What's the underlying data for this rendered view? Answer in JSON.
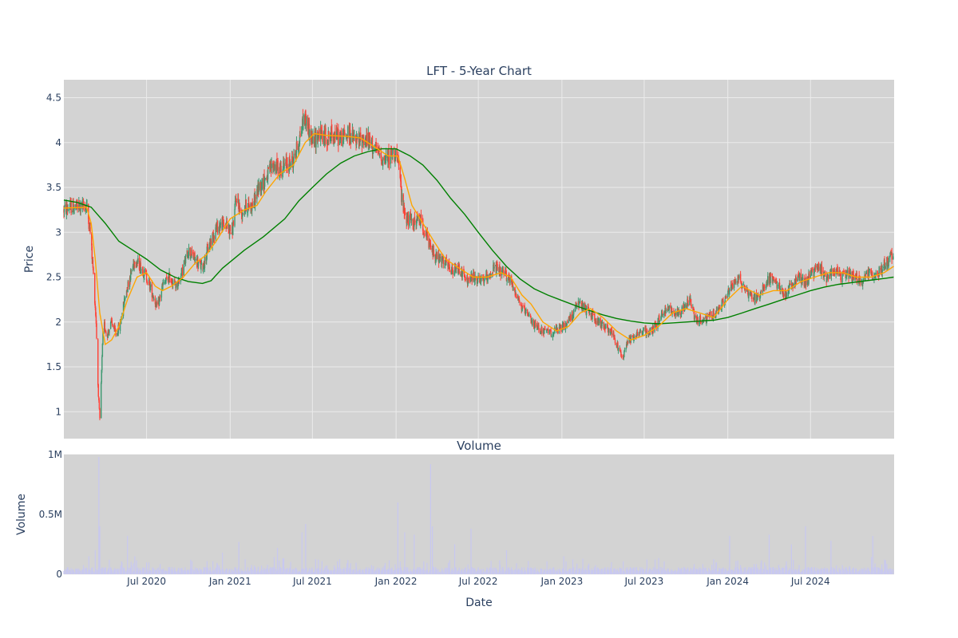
{
  "chart_data": [
    {
      "type": "candlestick",
      "title": "LFT - 5-Year Chart",
      "xlabel": "",
      "ylabel": "Price",
      "ylim": [
        0.7,
        4.7
      ],
      "yticks": [
        1,
        1.5,
        2,
        2.5,
        3,
        3.5,
        4,
        4.5
      ],
      "ytick_labels": [
        "1",
        "1.5",
        "2",
        "2.5",
        "3",
        "3.5",
        "4",
        "4.5"
      ],
      "xlim": [
        "2020-01-01",
        "2025-01-01"
      ],
      "colors": {
        "up": "#3d9970",
        "down": "#ff4136",
        "ma_short": "#ffa500",
        "ma_long": "#008000",
        "plot_bg": "#d3d3d3",
        "grid": "#ebebeb"
      },
      "close_path": [
        [
          "2020-01-01",
          3.25
        ],
        [
          "2020-01-15",
          3.28
        ],
        [
          "2020-02-01",
          3.28
        ],
        [
          "2020-02-20",
          3.3
        ],
        [
          "2020-02-28",
          3.0
        ],
        [
          "2020-03-05",
          2.6
        ],
        [
          "2020-03-12",
          2.0
        ],
        [
          "2020-03-16",
          1.3
        ],
        [
          "2020-03-20",
          0.9
        ],
        [
          "2020-03-24",
          1.45
        ],
        [
          "2020-03-28",
          2.0
        ],
        [
          "2020-04-05",
          1.85
        ],
        [
          "2020-04-15",
          2.0
        ],
        [
          "2020-04-25",
          1.85
        ],
        [
          "2020-05-05",
          2.0
        ],
        [
          "2020-05-15",
          2.3
        ],
        [
          "2020-05-25",
          2.5
        ],
        [
          "2020-06-05",
          2.7
        ],
        [
          "2020-06-20",
          2.6
        ],
        [
          "2020-07-01",
          2.5
        ],
        [
          "2020-07-15",
          2.3
        ],
        [
          "2020-07-25",
          2.15
        ],
        [
          "2020-08-05",
          2.4
        ],
        [
          "2020-08-20",
          2.5
        ],
        [
          "2020-09-05",
          2.4
        ],
        [
          "2020-09-20",
          2.6
        ],
        [
          "2020-10-01",
          2.8
        ],
        [
          "2020-10-15",
          2.7
        ],
        [
          "2020-11-01",
          2.6
        ],
        [
          "2020-11-15",
          2.85
        ],
        [
          "2020-12-01",
          3.05
        ],
        [
          "2020-12-20",
          3.1
        ],
        [
          "2021-01-05",
          3.0
        ],
        [
          "2021-01-15",
          3.4
        ],
        [
          "2021-01-25",
          3.2
        ],
        [
          "2021-02-05",
          3.3
        ],
        [
          "2021-02-20",
          3.3
        ],
        [
          "2021-03-05",
          3.5
        ],
        [
          "2021-03-20",
          3.6
        ],
        [
          "2021-04-05",
          3.75
        ],
        [
          "2021-04-20",
          3.7
        ],
        [
          "2021-05-05",
          3.75
        ],
        [
          "2021-05-20",
          3.8
        ],
        [
          "2021-06-05",
          4.1
        ],
        [
          "2021-06-12",
          4.3
        ],
        [
          "2021-06-20",
          4.2
        ],
        [
          "2021-07-01",
          4.0
        ],
        [
          "2021-07-15",
          4.1
        ],
        [
          "2021-08-01",
          4.05
        ],
        [
          "2021-08-15",
          4.1
        ],
        [
          "2021-09-01",
          4.05
        ],
        [
          "2021-09-20",
          4.1
        ],
        [
          "2021-10-05",
          4.0
        ],
        [
          "2021-10-20",
          4.05
        ],
        [
          "2021-11-05",
          4.0
        ],
        [
          "2021-11-20",
          3.9
        ],
        [
          "2021-12-05",
          3.8
        ],
        [
          "2021-12-20",
          3.85
        ],
        [
          "2022-01-01",
          3.9
        ],
        [
          "2022-01-10",
          3.6
        ],
        [
          "2022-01-15",
          3.3
        ],
        [
          "2022-01-25",
          3.15
        ],
        [
          "2022-02-10",
          3.1
        ],
        [
          "2022-02-25",
          3.15
        ],
        [
          "2022-03-05",
          3.0
        ],
        [
          "2022-03-20",
          2.8
        ],
        [
          "2022-04-05",
          2.7
        ],
        [
          "2022-04-20",
          2.65
        ],
        [
          "2022-05-05",
          2.55
        ],
        [
          "2022-05-20",
          2.6
        ],
        [
          "2022-06-05",
          2.45
        ],
        [
          "2022-06-20",
          2.5
        ],
        [
          "2022-07-05",
          2.45
        ],
        [
          "2022-07-20",
          2.5
        ],
        [
          "2022-08-05",
          2.6
        ],
        [
          "2022-08-20",
          2.55
        ],
        [
          "2022-09-05",
          2.5
        ],
        [
          "2022-09-20",
          2.35
        ],
        [
          "2022-10-05",
          2.15
        ],
        [
          "2022-10-20",
          2.05
        ],
        [
          "2022-11-05",
          1.95
        ],
        [
          "2022-11-20",
          1.9
        ],
        [
          "2022-12-05",
          1.88
        ],
        [
          "2022-12-20",
          1.9
        ],
        [
          "2023-01-05",
          1.95
        ],
        [
          "2023-01-20",
          2.05
        ],
        [
          "2023-02-05",
          2.2
        ],
        [
          "2023-02-20",
          2.15
        ],
        [
          "2023-03-05",
          2.1
        ],
        [
          "2023-03-20",
          2.0
        ],
        [
          "2023-04-05",
          1.95
        ],
        [
          "2023-04-20",
          1.9
        ],
        [
          "2023-05-05",
          1.7
        ],
        [
          "2023-05-15",
          1.6
        ],
        [
          "2023-05-25",
          1.8
        ],
        [
          "2023-06-10",
          1.85
        ],
        [
          "2023-06-25",
          1.9
        ],
        [
          "2023-07-10",
          1.88
        ],
        [
          "2023-07-25",
          1.95
        ],
        [
          "2023-08-10",
          2.1
        ],
        [
          "2023-08-25",
          2.15
        ],
        [
          "2023-09-10",
          2.1
        ],
        [
          "2023-09-25",
          2.15
        ],
        [
          "2023-10-10",
          2.25
        ],
        [
          "2023-10-20",
          2.05
        ],
        [
          "2023-11-05",
          2.0
        ],
        [
          "2023-11-20",
          2.05
        ],
        [
          "2023-12-05",
          2.1
        ],
        [
          "2023-12-20",
          2.2
        ],
        [
          "2024-01-05",
          2.35
        ],
        [
          "2024-01-20",
          2.5
        ],
        [
          "2024-02-05",
          2.4
        ],
        [
          "2024-02-20",
          2.3
        ],
        [
          "2024-03-05",
          2.25
        ],
        [
          "2024-03-20",
          2.4
        ],
        [
          "2024-04-05",
          2.5
        ],
        [
          "2024-04-20",
          2.4
        ],
        [
          "2024-05-05",
          2.3
        ],
        [
          "2024-05-20",
          2.4
        ],
        [
          "2024-06-05",
          2.5
        ],
        [
          "2024-06-20",
          2.45
        ],
        [
          "2024-07-05",
          2.55
        ],
        [
          "2024-07-20",
          2.6
        ],
        [
          "2024-08-05",
          2.5
        ],
        [
          "2024-08-20",
          2.6
        ],
        [
          "2024-09-05",
          2.5
        ],
        [
          "2024-09-20",
          2.55
        ],
        [
          "2024-10-05",
          2.5
        ],
        [
          "2024-10-20",
          2.45
        ],
        [
          "2024-11-05",
          2.55
        ],
        [
          "2024-11-20",
          2.5
        ],
        [
          "2024-12-05",
          2.6
        ],
        [
          "2024-12-20",
          2.7
        ],
        [
          "2024-12-31",
          2.75
        ]
      ],
      "ma_short": [
        [
          "2020-01-01",
          3.27
        ],
        [
          "2020-02-20",
          3.28
        ],
        [
          "2020-03-01",
          3.1
        ],
        [
          "2020-03-10",
          2.7
        ],
        [
          "2020-03-20",
          2.1
        ],
        [
          "2020-04-01",
          1.75
        ],
        [
          "2020-04-15",
          1.8
        ],
        [
          "2020-05-01",
          1.95
        ],
        [
          "2020-05-20",
          2.25
        ],
        [
          "2020-06-10",
          2.5
        ],
        [
          "2020-07-01",
          2.55
        ],
        [
          "2020-07-20",
          2.4
        ],
        [
          "2020-08-05",
          2.35
        ],
        [
          "2020-08-25",
          2.4
        ],
        [
          "2020-09-20",
          2.5
        ],
        [
          "2020-10-15",
          2.65
        ],
        [
          "2020-11-10",
          2.75
        ],
        [
          "2020-12-01",
          2.9
        ],
        [
          "2021-01-01",
          3.15
        ],
        [
          "2021-02-01",
          3.25
        ],
        [
          "2021-03-01",
          3.3
        ],
        [
          "2021-03-20",
          3.45
        ],
        [
          "2021-04-20",
          3.65
        ],
        [
          "2021-05-20",
          3.75
        ],
        [
          "2021-06-15",
          4.0
        ],
        [
          "2021-07-05",
          4.1
        ],
        [
          "2021-08-01",
          4.08
        ],
        [
          "2021-09-15",
          4.07
        ],
        [
          "2021-10-15",
          4.05
        ],
        [
          "2021-11-15",
          3.95
        ],
        [
          "2021-12-15",
          3.85
        ],
        [
          "2022-01-05",
          3.85
        ],
        [
          "2022-01-20",
          3.6
        ],
        [
          "2022-02-05",
          3.3
        ],
        [
          "2022-03-01",
          3.1
        ],
        [
          "2022-03-25",
          2.9
        ],
        [
          "2022-04-20",
          2.7
        ],
        [
          "2022-05-20",
          2.6
        ],
        [
          "2022-06-20",
          2.5
        ],
        [
          "2022-07-20",
          2.5
        ],
        [
          "2022-08-20",
          2.55
        ],
        [
          "2022-09-10",
          2.5
        ],
        [
          "2022-10-05",
          2.3
        ],
        [
          "2022-10-25",
          2.2
        ],
        [
          "2022-11-20",
          2.0
        ],
        [
          "2022-12-20",
          1.9
        ],
        [
          "2023-01-15",
          1.95
        ],
        [
          "2023-02-10",
          2.1
        ],
        [
          "2023-03-05",
          2.15
        ],
        [
          "2023-04-01",
          2.05
        ],
        [
          "2023-05-01",
          1.9
        ],
        [
          "2023-06-01",
          1.8
        ],
        [
          "2023-07-01",
          1.85
        ],
        [
          "2023-08-01",
          1.95
        ],
        [
          "2023-09-01",
          2.1
        ],
        [
          "2023-10-01",
          2.15
        ],
        [
          "2023-11-01",
          2.1
        ],
        [
          "2023-12-01",
          2.05
        ],
        [
          "2024-01-01",
          2.25
        ],
        [
          "2024-02-01",
          2.4
        ],
        [
          "2024-03-10",
          2.3
        ],
        [
          "2024-04-10",
          2.35
        ],
        [
          "2024-05-10",
          2.35
        ],
        [
          "2024-06-10",
          2.45
        ],
        [
          "2024-07-10",
          2.5
        ],
        [
          "2024-08-10",
          2.55
        ],
        [
          "2024-09-10",
          2.55
        ],
        [
          "2024-10-10",
          2.5
        ],
        [
          "2024-11-10",
          2.5
        ],
        [
          "2024-12-10",
          2.55
        ],
        [
          "2024-12-31",
          2.62
        ]
      ],
      "ma_long": [
        [
          "2020-01-01",
          3.36
        ],
        [
          "2020-02-01",
          3.33
        ],
        [
          "2020-03-01",
          3.28
        ],
        [
          "2020-04-01",
          3.1
        ],
        [
          "2020-05-01",
          2.9
        ],
        [
          "2020-06-01",
          2.8
        ],
        [
          "2020-07-01",
          2.7
        ],
        [
          "2020-08-01",
          2.58
        ],
        [
          "2020-09-01",
          2.5
        ],
        [
          "2020-10-01",
          2.45
        ],
        [
          "2020-11-01",
          2.43
        ],
        [
          "2020-11-20",
          2.46
        ],
        [
          "2020-12-15",
          2.6
        ],
        [
          "2021-02-01",
          2.8
        ],
        [
          "2021-03-15",
          2.95
        ],
        [
          "2021-05-01",
          3.15
        ],
        [
          "2021-06-01",
          3.35
        ],
        [
          "2021-07-01",
          3.5
        ],
        [
          "2021-08-01",
          3.65
        ],
        [
          "2021-09-01",
          3.77
        ],
        [
          "2021-10-01",
          3.85
        ],
        [
          "2021-11-01",
          3.9
        ],
        [
          "2021-12-01",
          3.93
        ],
        [
          "2022-01-01",
          3.93
        ],
        [
          "2022-02-01",
          3.85
        ],
        [
          "2022-03-01",
          3.75
        ],
        [
          "2022-04-01",
          3.58
        ],
        [
          "2022-05-01",
          3.38
        ],
        [
          "2022-06-01",
          3.2
        ],
        [
          "2022-07-01",
          3.0
        ],
        [
          "2022-08-01",
          2.8
        ],
        [
          "2022-09-01",
          2.62
        ],
        [
          "2022-10-01",
          2.48
        ],
        [
          "2022-11-01",
          2.37
        ],
        [
          "2022-12-01",
          2.3
        ],
        [
          "2023-01-01",
          2.24
        ],
        [
          "2023-02-01",
          2.18
        ],
        [
          "2023-03-01",
          2.13
        ],
        [
          "2023-04-01",
          2.08
        ],
        [
          "2023-05-01",
          2.04
        ],
        [
          "2023-06-01",
          2.01
        ],
        [
          "2023-07-01",
          1.99
        ],
        [
          "2023-08-01",
          1.98
        ],
        [
          "2023-09-01",
          1.99
        ],
        [
          "2023-10-01",
          2.0
        ],
        [
          "2023-11-01",
          2.01
        ],
        [
          "2023-12-01",
          2.02
        ],
        [
          "2024-01-01",
          2.05
        ],
        [
          "2024-02-01",
          2.1
        ],
        [
          "2024-03-01",
          2.15
        ],
        [
          "2024-04-01",
          2.2
        ],
        [
          "2024-05-01",
          2.25
        ],
        [
          "2024-06-01",
          2.3
        ],
        [
          "2024-07-01",
          2.35
        ],
        [
          "2024-08-01",
          2.39
        ],
        [
          "2024-09-01",
          2.42
        ],
        [
          "2024-10-01",
          2.44
        ],
        [
          "2024-11-01",
          2.46
        ],
        [
          "2024-12-01",
          2.48
        ],
        [
          "2024-12-31",
          2.5
        ]
      ]
    },
    {
      "type": "bar",
      "title": "Volume",
      "xlabel": "Date",
      "ylabel": "Volume",
      "ylim": [
        0,
        1000000
      ],
      "yticks": [
        0,
        500000,
        1000000
      ],
      "ytick_labels": [
        "0",
        "0.5M",
        "1M"
      ],
      "xticks": [
        "2020-07-01",
        "2021-01-01",
        "2021-07-01",
        "2022-01-01",
        "2022-07-01",
        "2023-01-01",
        "2023-07-01",
        "2024-01-01",
        "2024-07-01"
      ],
      "xtick_labels": [
        "Jul 2020",
        "Jan 2021",
        "Jul 2021",
        "Jan 2022",
        "Jul 2022",
        "Jan 2023",
        "Jul 2023",
        "Jan 2024",
        "Jul 2024"
      ],
      "bar_color": "#c8c8f0",
      "spikes": [
        [
          "2020-02-25",
          150000
        ],
        [
          "2020-03-10",
          200000
        ],
        [
          "2020-03-18",
          980000
        ],
        [
          "2020-03-20",
          400000
        ],
        [
          "2020-05-20",
          320000
        ],
        [
          "2020-06-05",
          150000
        ],
        [
          "2020-12-15",
          180000
        ],
        [
          "2021-01-20",
          270000
        ],
        [
          "2021-04-15",
          220000
        ],
        [
          "2021-06-08",
          350000
        ],
        [
          "2021-06-12",
          650000
        ],
        [
          "2021-06-16",
          420000
        ],
        [
          "2021-07-10",
          250000
        ],
        [
          "2022-01-05",
          600000
        ],
        [
          "2022-01-20",
          350000
        ],
        [
          "2022-02-10",
          330000
        ],
        [
          "2022-03-05",
          250000
        ],
        [
          "2022-03-18",
          920000
        ],
        [
          "2022-03-22",
          400000
        ],
        [
          "2022-05-10",
          250000
        ],
        [
          "2022-06-15",
          380000
        ],
        [
          "2022-09-01",
          200000
        ],
        [
          "2022-10-01",
          180000
        ],
        [
          "2023-01-05",
          150000
        ],
        [
          "2023-05-20",
          180000
        ],
        [
          "2024-01-05",
          320000
        ],
        [
          "2024-04-01",
          330000
        ],
        [
          "2024-05-20",
          250000
        ],
        [
          "2024-06-01",
          350000
        ],
        [
          "2024-06-20",
          400000
        ],
        [
          "2024-08-15",
          280000
        ],
        [
          "2024-11-15",
          320000
        ],
        [
          "2024-12-15",
          420000
        ]
      ]
    }
  ]
}
